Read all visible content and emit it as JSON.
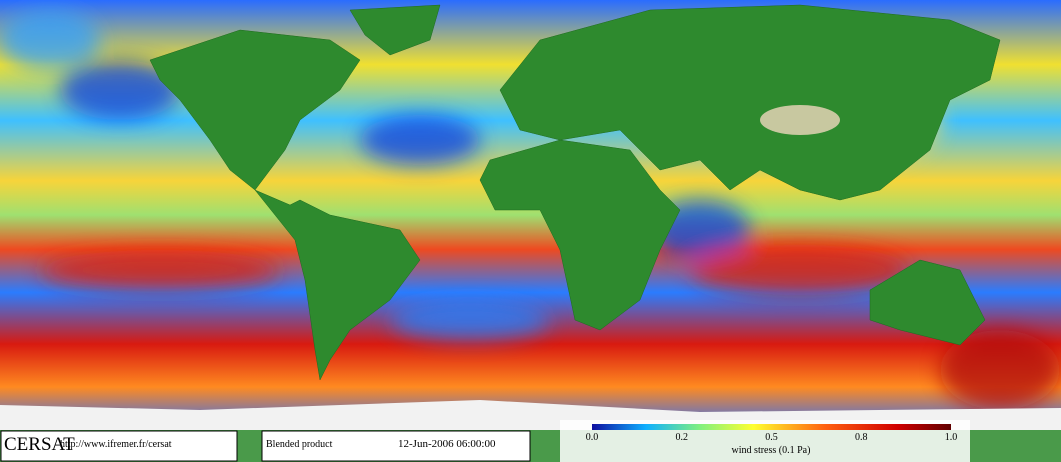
{
  "footer": {
    "logo": "CERSAT",
    "url": "http://www.ifremer.fr/cersat",
    "product": "Blended product",
    "date": "12-Jun-2006 06:00:00"
  },
  "colorbar": {
    "tick_labels": [
      "0.0",
      "0.2",
      "0.5",
      "0.8",
      "1.0"
    ],
    "label": "wind stress (0.1 Pa)"
  }
}
